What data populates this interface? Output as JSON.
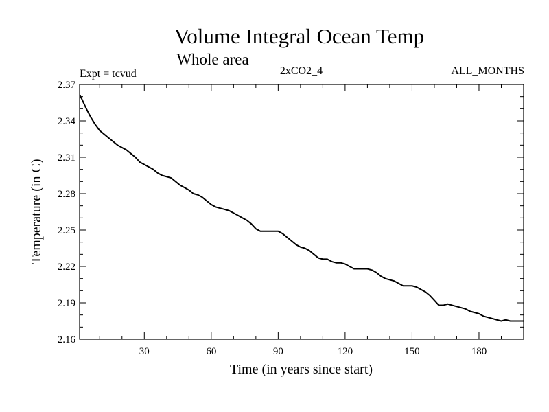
{
  "chart_data": {
    "type": "line",
    "title": "Volume Integral Ocean Temp",
    "subtitle": "Whole area",
    "annotations": {
      "left": "Expt = tcvud",
      "center": "2xCO2_4",
      "right": "ALL_MONTHS"
    },
    "xlabel": "Time (in years since start)",
    "ylabel": "Temperature (in C)",
    "xlim": [
      1,
      200
    ],
    "ylim": [
      2.16,
      2.37
    ],
    "xticks": [
      30,
      60,
      90,
      120,
      150,
      180
    ],
    "yticks": [
      2.16,
      2.19,
      2.22,
      2.25,
      2.28,
      2.31,
      2.34,
      2.37
    ],
    "ytick_labels": [
      "2.16",
      "2.19",
      "2.22",
      "2.25",
      "2.28",
      "2.31",
      "2.34",
      "2.37"
    ],
    "grid": false,
    "legend": "none",
    "line_color": "#000000",
    "x": [
      1,
      2,
      4,
      6,
      8,
      10,
      12,
      14,
      16,
      18,
      20,
      22,
      24,
      26,
      28,
      30,
      32,
      34,
      36,
      38,
      40,
      42,
      44,
      46,
      48,
      50,
      52,
      54,
      56,
      58,
      60,
      62,
      64,
      66,
      68,
      70,
      72,
      74,
      76,
      78,
      80,
      82,
      84,
      86,
      88,
      90,
      92,
      94,
      96,
      98,
      100,
      102,
      104,
      106,
      108,
      110,
      112,
      114,
      116,
      118,
      120,
      122,
      124,
      126,
      128,
      130,
      132,
      134,
      136,
      138,
      140,
      142,
      144,
      146,
      148,
      150,
      152,
      154,
      156,
      158,
      160,
      162,
      164,
      166,
      168,
      170,
      172,
      174,
      176,
      178,
      180,
      182,
      184,
      186,
      188,
      190,
      192,
      194,
      196,
      198,
      200
    ],
    "y": [
      2.3615,
      2.358,
      2.35,
      2.343,
      2.337,
      2.332,
      2.329,
      2.326,
      2.323,
      2.32,
      2.318,
      2.316,
      2.313,
      2.31,
      2.306,
      2.304,
      2.302,
      2.3,
      2.297,
      2.295,
      2.294,
      2.293,
      2.29,
      2.287,
      2.285,
      2.283,
      2.28,
      2.279,
      2.277,
      2.274,
      2.271,
      2.269,
      2.268,
      2.267,
      2.266,
      2.264,
      2.262,
      2.26,
      2.258,
      2.255,
      2.251,
      2.249,
      2.249,
      2.249,
      2.249,
      2.249,
      2.247,
      2.244,
      2.241,
      2.238,
      2.236,
      2.235,
      2.233,
      2.23,
      2.227,
      2.226,
      2.226,
      2.224,
      2.223,
      2.223,
      2.222,
      2.22,
      2.218,
      2.218,
      2.218,
      2.218,
      2.217,
      2.215,
      2.212,
      2.21,
      2.209,
      2.208,
      2.206,
      2.204,
      2.204,
      2.204,
      2.203,
      2.201,
      2.199,
      2.196,
      2.192,
      2.188,
      2.188,
      2.189,
      2.188,
      2.187,
      2.186,
      2.185,
      2.183,
      2.182,
      2.181,
      2.179,
      2.178,
      2.177,
      2.176,
      2.175,
      2.176,
      2.175,
      2.175,
      2.175,
      2.175
    ]
  }
}
